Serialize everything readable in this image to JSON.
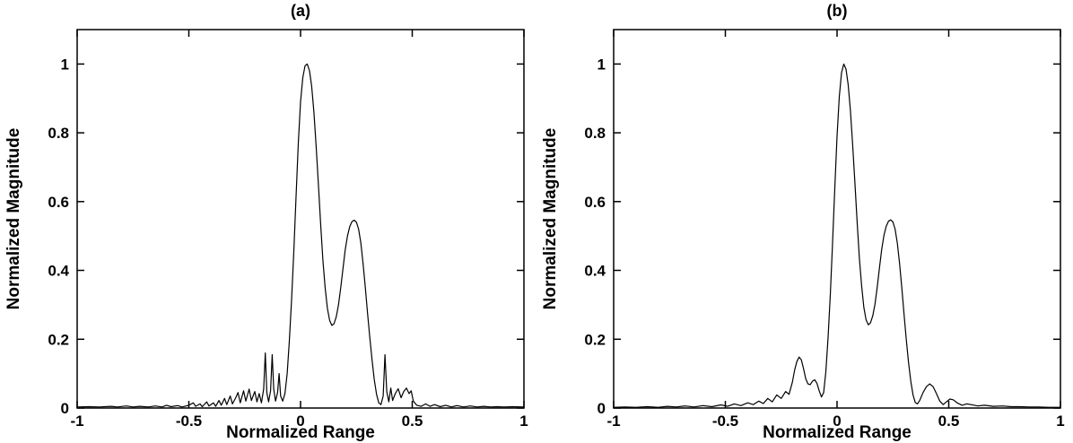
{
  "colors": {
    "background": "#ffffff",
    "axis": "#000000",
    "line": "#000000"
  },
  "chart_data": [
    {
      "type": "line",
      "title": "(a)",
      "xlabel": "Normalized Range",
      "ylabel": "Normalized Magnitude",
      "xlim": [
        -1,
        1
      ],
      "ylim": [
        0,
        1.1
      ],
      "xticks": [
        -1,
        -0.5,
        0,
        0.5,
        1
      ],
      "xtick_labels": [
        "-1",
        "-0.5",
        "0",
        "0.5",
        "1"
      ],
      "yticks": [
        0,
        0.2,
        0.4,
        0.6,
        0.8,
        1
      ],
      "ytick_labels": [
        "0",
        "0.2",
        "0.4",
        "0.6",
        "0.8",
        "1"
      ],
      "grid": false,
      "legend": null,
      "line_color": "#000000",
      "points": [
        [
          -1.0,
          0.003
        ],
        [
          -0.95,
          0.004
        ],
        [
          -0.9,
          0.003
        ],
        [
          -0.85,
          0.005
        ],
        [
          -0.82,
          0.003
        ],
        [
          -0.78,
          0.006
        ],
        [
          -0.75,
          0.003
        ],
        [
          -0.72,
          0.005
        ],
        [
          -0.68,
          0.003
        ],
        [
          -0.65,
          0.006
        ],
        [
          -0.62,
          0.003
        ],
        [
          -0.6,
          0.008
        ],
        [
          -0.58,
          0.004
        ],
        [
          -0.55,
          0.007
        ],
        [
          -0.53,
          0.003
        ],
        [
          -0.5,
          0.008
        ],
        [
          -0.48,
          0.015
        ],
        [
          -0.47,
          0.005
        ],
        [
          -0.45,
          0.012
        ],
        [
          -0.44,
          0.004
        ],
        [
          -0.42,
          0.018
        ],
        [
          -0.41,
          0.006
        ],
        [
          -0.39,
          0.015
        ],
        [
          -0.38,
          0.005
        ],
        [
          -0.365,
          0.022
        ],
        [
          -0.355,
          0.008
        ],
        [
          -0.34,
          0.028
        ],
        [
          -0.33,
          0.01
        ],
        [
          -0.315,
          0.035
        ],
        [
          -0.305,
          0.012
        ],
        [
          -0.29,
          0.03
        ],
        [
          -0.28,
          0.045
        ],
        [
          -0.27,
          0.015
        ],
        [
          -0.255,
          0.05
        ],
        [
          -0.245,
          0.02
        ],
        [
          -0.23,
          0.055
        ],
        [
          -0.22,
          0.022
        ],
        [
          -0.205,
          0.048
        ],
        [
          -0.195,
          0.018
        ],
        [
          -0.185,
          0.042
        ],
        [
          -0.175,
          0.015
        ],
        [
          -0.165,
          0.055
        ],
        [
          -0.158,
          0.16
        ],
        [
          -0.151,
          0.045
        ],
        [
          -0.143,
          0.018
        ],
        [
          -0.134,
          0.05
        ],
        [
          -0.127,
          0.155
        ],
        [
          -0.12,
          0.055
        ],
        [
          -0.112,
          0.02
        ],
        [
          -0.103,
          0.045
        ],
        [
          -0.096,
          0.1
        ],
        [
          -0.089,
          0.035
        ],
        [
          -0.08,
          0.02
        ],
        [
          -0.07,
          0.042
        ],
        [
          -0.06,
          0.1
        ],
        [
          -0.05,
          0.195
        ],
        [
          -0.04,
          0.315
        ],
        [
          -0.03,
          0.455
        ],
        [
          -0.02,
          0.615
        ],
        [
          -0.01,
          0.77
        ],
        [
          0.0,
          0.89
        ],
        [
          0.01,
          0.96
        ],
        [
          0.02,
          0.995
        ],
        [
          0.03,
          1.0
        ],
        [
          0.04,
          0.98
        ],
        [
          0.05,
          0.935
        ],
        [
          0.06,
          0.86
        ],
        [
          0.07,
          0.76
        ],
        [
          0.08,
          0.65
        ],
        [
          0.09,
          0.535
        ],
        [
          0.1,
          0.43
        ],
        [
          0.11,
          0.35
        ],
        [
          0.12,
          0.29
        ],
        [
          0.13,
          0.255
        ],
        [
          0.14,
          0.24
        ],
        [
          0.15,
          0.245
        ],
        [
          0.16,
          0.265
        ],
        [
          0.17,
          0.3
        ],
        [
          0.18,
          0.35
        ],
        [
          0.19,
          0.405
        ],
        [
          0.2,
          0.46
        ],
        [
          0.21,
          0.5
        ],
        [
          0.22,
          0.527
        ],
        [
          0.23,
          0.542
        ],
        [
          0.24,
          0.546
        ],
        [
          0.25,
          0.54
        ],
        [
          0.26,
          0.52
        ],
        [
          0.27,
          0.48
        ],
        [
          0.28,
          0.42
        ],
        [
          0.29,
          0.35
        ],
        [
          0.3,
          0.275
        ],
        [
          0.31,
          0.205
        ],
        [
          0.32,
          0.14
        ],
        [
          0.33,
          0.082
        ],
        [
          0.34,
          0.04
        ],
        [
          0.35,
          0.015
        ],
        [
          0.36,
          0.01
        ],
        [
          0.37,
          0.035
        ],
        [
          0.378,
          0.155
        ],
        [
          0.386,
          0.048
        ],
        [
          0.395,
          0.018
        ],
        [
          0.404,
          0.058
        ],
        [
          0.412,
          0.022
        ],
        [
          0.424,
          0.042
        ],
        [
          0.437,
          0.056
        ],
        [
          0.45,
          0.03
        ],
        [
          0.462,
          0.048
        ],
        [
          0.474,
          0.058
        ],
        [
          0.486,
          0.042
        ],
        [
          0.495,
          0.05
        ],
        [
          0.505,
          0.02
        ],
        [
          0.52,
          0.008
        ],
        [
          0.54,
          0.005
        ],
        [
          0.56,
          0.012
        ],
        [
          0.58,
          0.005
        ],
        [
          0.6,
          0.01
        ],
        [
          0.625,
          0.004
        ],
        [
          0.65,
          0.008
        ],
        [
          0.675,
          0.003
        ],
        [
          0.7,
          0.007
        ],
        [
          0.73,
          0.003
        ],
        [
          0.76,
          0.006
        ],
        [
          0.79,
          0.003
        ],
        [
          0.82,
          0.005
        ],
        [
          0.85,
          0.003
        ],
        [
          0.88,
          0.004
        ],
        [
          0.91,
          0.003
        ],
        [
          0.95,
          0.004
        ],
        [
          1.0,
          0.003
        ]
      ]
    },
    {
      "type": "line",
      "title": "(b)",
      "xlabel": "Normalized Range",
      "ylabel": "Normalized Magnitude",
      "xlim": [
        -1,
        1
      ],
      "ylim": [
        0,
        1.1
      ],
      "xticks": [
        -1,
        -0.5,
        0,
        0.5,
        1
      ],
      "xtick_labels": [
        "-1",
        "-0.5",
        "0",
        "0.5",
        "1"
      ],
      "yticks": [
        0,
        0.2,
        0.4,
        0.6,
        0.8,
        1
      ],
      "ytick_labels": [
        "0",
        "0.2",
        "0.4",
        "0.6",
        "0.8",
        "1"
      ],
      "grid": false,
      "legend": null,
      "line_color": "#000000",
      "points": [
        [
          -1.0,
          0.002
        ],
        [
          -0.95,
          0.003
        ],
        [
          -0.9,
          0.002
        ],
        [
          -0.85,
          0.004
        ],
        [
          -0.8,
          0.002
        ],
        [
          -0.76,
          0.005
        ],
        [
          -0.72,
          0.003
        ],
        [
          -0.68,
          0.006
        ],
        [
          -0.64,
          0.003
        ],
        [
          -0.6,
          0.007
        ],
        [
          -0.56,
          0.004
        ],
        [
          -0.52,
          0.009
        ],
        [
          -0.49,
          0.005
        ],
        [
          -0.46,
          0.012
        ],
        [
          -0.43,
          0.007
        ],
        [
          -0.4,
          0.015
        ],
        [
          -0.375,
          0.01
        ],
        [
          -0.35,
          0.02
        ],
        [
          -0.33,
          0.013
        ],
        [
          -0.31,
          0.028
        ],
        [
          -0.29,
          0.018
        ],
        [
          -0.27,
          0.038
        ],
        [
          -0.25,
          0.028
        ],
        [
          -0.23,
          0.048
        ],
        [
          -0.215,
          0.04
        ],
        [
          -0.2,
          0.075
        ],
        [
          -0.19,
          0.11
        ],
        [
          -0.18,
          0.135
        ],
        [
          -0.17,
          0.148
        ],
        [
          -0.16,
          0.14
        ],
        [
          -0.15,
          0.115
        ],
        [
          -0.14,
          0.085
        ],
        [
          -0.13,
          0.07
        ],
        [
          -0.12,
          0.068
        ],
        [
          -0.11,
          0.078
        ],
        [
          -0.1,
          0.082
        ],
        [
          -0.09,
          0.072
        ],
        [
          -0.08,
          0.05
        ],
        [
          -0.07,
          0.032
        ],
        [
          -0.06,
          0.045
        ],
        [
          -0.05,
          0.105
        ],
        [
          -0.04,
          0.205
        ],
        [
          -0.03,
          0.33
        ],
        [
          -0.02,
          0.48
        ],
        [
          -0.01,
          0.64
        ],
        [
          0.0,
          0.79
        ],
        [
          0.01,
          0.905
        ],
        [
          0.02,
          0.975
        ],
        [
          0.03,
          1.0
        ],
        [
          0.04,
          0.985
        ],
        [
          0.05,
          0.94
        ],
        [
          0.06,
          0.865
        ],
        [
          0.07,
          0.765
        ],
        [
          0.08,
          0.655
        ],
        [
          0.09,
          0.54
        ],
        [
          0.1,
          0.435
        ],
        [
          0.11,
          0.355
        ],
        [
          0.12,
          0.292
        ],
        [
          0.13,
          0.256
        ],
        [
          0.14,
          0.242
        ],
        [
          0.15,
          0.248
        ],
        [
          0.16,
          0.268
        ],
        [
          0.17,
          0.302
        ],
        [
          0.18,
          0.352
        ],
        [
          0.19,
          0.408
        ],
        [
          0.2,
          0.462
        ],
        [
          0.21,
          0.502
        ],
        [
          0.22,
          0.528
        ],
        [
          0.23,
          0.543
        ],
        [
          0.24,
          0.547
        ],
        [
          0.25,
          0.541
        ],
        [
          0.26,
          0.52
        ],
        [
          0.27,
          0.479
        ],
        [
          0.28,
          0.42
        ],
        [
          0.29,
          0.349
        ],
        [
          0.3,
          0.272
        ],
        [
          0.31,
          0.198
        ],
        [
          0.32,
          0.132
        ],
        [
          0.33,
          0.078
        ],
        [
          0.34,
          0.038
        ],
        [
          0.35,
          0.016
        ],
        [
          0.36,
          0.012
        ],
        [
          0.37,
          0.022
        ],
        [
          0.385,
          0.045
        ],
        [
          0.4,
          0.062
        ],
        [
          0.415,
          0.07
        ],
        [
          0.43,
          0.062
        ],
        [
          0.445,
          0.042
        ],
        [
          0.46,
          0.02
        ],
        [
          0.475,
          0.01
        ],
        [
          0.49,
          0.018
        ],
        [
          0.505,
          0.026
        ],
        [
          0.52,
          0.024
        ],
        [
          0.54,
          0.014
        ],
        [
          0.56,
          0.008
        ],
        [
          0.58,
          0.012
        ],
        [
          0.6,
          0.01
        ],
        [
          0.63,
          0.006
        ],
        [
          0.66,
          0.008
        ],
        [
          0.7,
          0.005
        ],
        [
          0.74,
          0.006
        ],
        [
          0.78,
          0.004
        ],
        [
          0.82,
          0.004
        ],
        [
          0.86,
          0.003
        ],
        [
          0.9,
          0.003
        ],
        [
          0.95,
          0.002
        ],
        [
          1.0,
          0.002
        ]
      ]
    }
  ]
}
